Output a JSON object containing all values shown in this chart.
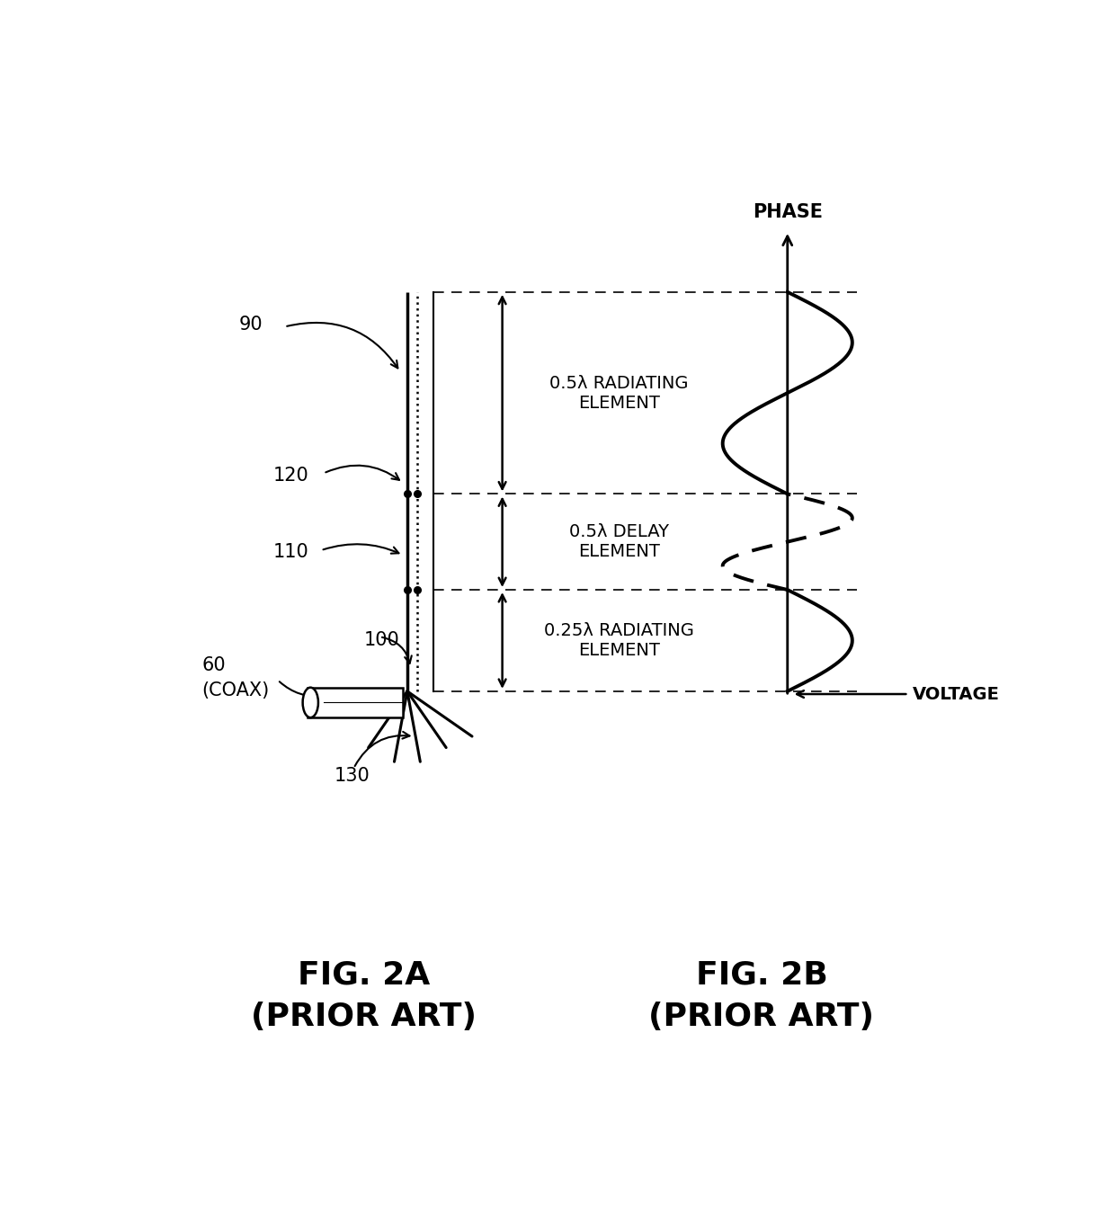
{
  "bg_color": "#ffffff",
  "fig_width": 12.4,
  "fig_height": 13.57,
  "label_90": "90",
  "label_120": "120",
  "label_110": "110",
  "label_100": "100",
  "label_60": "60",
  "label_60b": "(COAX)",
  "label_130": "130",
  "label_phase": "PHASE",
  "label_voltage": "VOLTAGE",
  "label_05rad": "0.5λ RADIATING\nELEMENT",
  "label_05del": "0.5λ DELAY\nELEMENT",
  "label_025rad": "0.25λ RADIATING\nELEMENT",
  "fig2a": "FIG. 2A",
  "fig2a_sub": "(PRIOR ART)",
  "fig2b": "FIG. 2B",
  "fig2b_sub": "(PRIOR ART)"
}
